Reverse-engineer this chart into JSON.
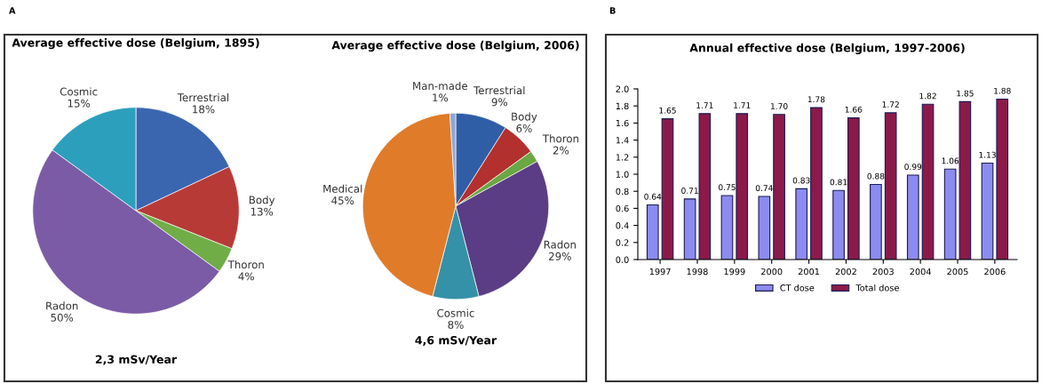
{
  "chart_data": [
    {
      "type": "pie",
      "title": "Average effective dose (Belgium, 1895)",
      "categories": [
        "Terrestrial",
        "Body",
        "Thoron",
        "Radon",
        "Cosmic"
      ],
      "values": [
        18,
        13,
        4,
        50,
        15
      ],
      "value_labels": [
        "18%",
        "13%",
        "4%",
        "50%",
        "15%"
      ],
      "colors": [
        "#3a66b0",
        "#b83a37",
        "#71ad47",
        "#7b5ba6",
        "#2c9fbd"
      ],
      "annotations": [
        "A",
        "2,3 mSv/Year"
      ]
    },
    {
      "type": "pie",
      "title": "Average effective dose (Belgium, 2006)",
      "categories": [
        "Terrestrial",
        "Body",
        "Thoron",
        "Radon",
        "Cosmic",
        "Medical",
        "Man-made"
      ],
      "values": [
        9,
        6,
        2,
        29,
        8,
        45,
        1
      ],
      "value_labels": [
        "9%",
        "6%",
        "2%",
        "29%",
        "8%",
        "45%",
        "1%"
      ],
      "colors": [
        "#2f5ea6",
        "#b2302e",
        "#6aa843",
        "#5a3d84",
        "#3591a8",
        "#e07b2a",
        "#8fa7d6"
      ],
      "annotations": [
        "4,6 mSv/Year"
      ]
    },
    {
      "type": "bar",
      "title": "Annual effective dose (Belgium, 1997-2006)",
      "categories": [
        "1997",
        "1998",
        "1999",
        "2000",
        "2001",
        "2002",
        "2003",
        "2004",
        "2005",
        "2006"
      ],
      "series": [
        {
          "name": "CT dose",
          "color": "#8c8cf0",
          "values": [
            0.64,
            0.71,
            0.75,
            0.74,
            0.83,
            0.81,
            0.88,
            0.99,
            1.06,
            1.13
          ]
        },
        {
          "name": "Total dose",
          "color": "#8b1a4a",
          "values": [
            1.65,
            1.71,
            1.71,
            1.7,
            1.78,
            1.66,
            1.72,
            1.82,
            1.85,
            1.88
          ],
          "value_labels": [
            "1.65",
            "1.71",
            "1.71",
            "1.70",
            "1.78",
            "1.66",
            "1.72",
            "1.82",
            "1.85",
            "1.88"
          ]
        }
      ],
      "ylim": [
        0,
        2.0
      ],
      "yticks": [
        {
          "value": 0,
          "label": "0.0"
        },
        0.2,
        0.4,
        0.6,
        0.8,
        {
          "value": 1,
          "label": "1.0"
        },
        1.2,
        1.4,
        1.6,
        1.8,
        {
          "value": 2,
          "label": "2.0"
        }
      ],
      "data_labels": true,
      "legend": "bottom",
      "grid": false,
      "annotations": [
        "B"
      ]
    }
  ]
}
